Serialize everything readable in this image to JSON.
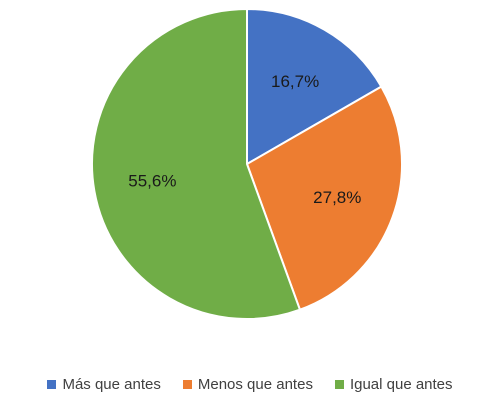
{
  "chart_data": {
    "type": "pie",
    "title": "",
    "categories": [
      "Más que antes",
      "Menos que antes",
      "Igual que antes"
    ],
    "values": [
      16.7,
      27.8,
      55.6
    ],
    "labels": [
      "16,7%",
      "27,8%",
      "55,6%"
    ],
    "colors": [
      "#4472C4",
      "#ED7D31",
      "#70AD47"
    ],
    "legend_position": "bottom"
  }
}
